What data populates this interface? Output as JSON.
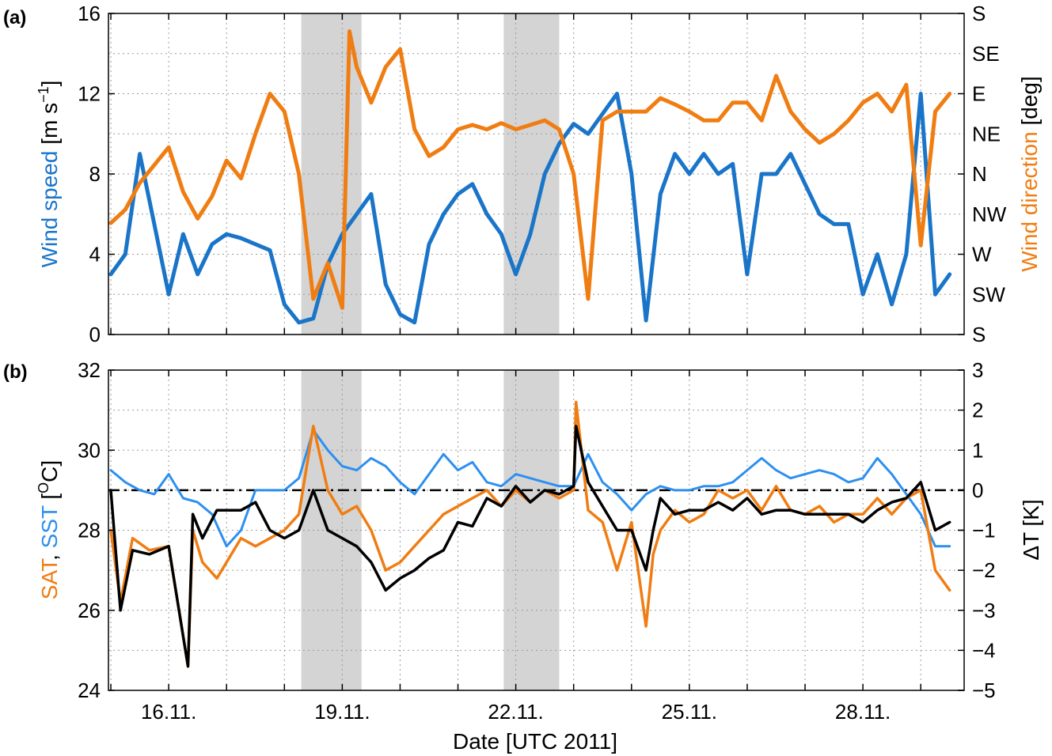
{
  "figure": {
    "xlabel": "Date [UTC 2011]",
    "x_tick_labels": [
      "16.11.",
      "19.11.",
      "22.11.",
      "25.11.",
      "28.11."
    ],
    "x_ticks": [
      "2011-11-16",
      "2011-11-19",
      "2011-11-22",
      "2011-11-25",
      "2011-11-28"
    ],
    "xlim": [
      "2011-11-14T23:00",
      "2011-11-29T18:00"
    ],
    "shaded_periods": [
      [
        "2011-11-18T07:00",
        "2011-11-19T08:00"
      ],
      [
        "2011-11-21T19:00",
        "2011-11-22T18:00"
      ]
    ],
    "colors": {
      "blue": "#1a75c9",
      "lightblue": "#2d8ff0",
      "orange": "#f07d12",
      "black": "#000000",
      "shade": "#d4d4d4",
      "grid": "#9a9a9a"
    }
  },
  "chart_data": [
    {
      "panel_label": "(a)",
      "type": "line",
      "ylabel_left": {
        "parts": [
          "Wind speed",
          " [m s",
          "−1",
          "]"
        ]
      },
      "ylabel_right": {
        "parts": [
          "Wind direction",
          " [deg]"
        ]
      },
      "ylim": [
        0,
        16
      ],
      "y_ticks": [
        0,
        4,
        8,
        12,
        16
      ],
      "right_tick_labels": [
        "S",
        "SW",
        "W",
        "NW",
        "N",
        "NE",
        "E",
        "SE",
        "S"
      ],
      "right_ylim_deg": [
        0,
        360
      ],
      "grid": true,
      "series": [
        {
          "axis": "left",
          "color_key": "blue",
          "x": [
            "2011-11-15T00:00",
            "2011-11-15T06:00",
            "2011-11-15T12:00",
            "2011-11-15T18:00",
            "2011-11-16T00:00",
            "2011-11-16T06:00",
            "2011-11-16T12:00",
            "2011-11-16T18:00",
            "2011-11-17T00:00",
            "2011-11-17T06:00",
            "2011-11-17T12:00",
            "2011-11-17T18:00",
            "2011-11-18T00:00",
            "2011-11-18T06:00",
            "2011-11-18T12:00",
            "2011-11-18T18:00",
            "2011-11-19T00:00",
            "2011-11-19T06:00",
            "2011-11-19T12:00",
            "2011-11-19T18:00",
            "2011-11-20T00:00",
            "2011-11-20T06:00",
            "2011-11-20T12:00",
            "2011-11-20T18:00",
            "2011-11-21T00:00",
            "2011-11-21T06:00",
            "2011-11-21T12:00",
            "2011-11-21T18:00",
            "2011-11-22T00:00",
            "2011-11-22T06:00",
            "2011-11-22T12:00",
            "2011-11-22T18:00",
            "2011-11-23T00:00",
            "2011-11-23T06:00",
            "2011-11-23T12:00",
            "2011-11-23T18:00",
            "2011-11-24T00:00",
            "2011-11-24T06:00",
            "2011-11-24T12:00",
            "2011-11-24T18:00",
            "2011-11-25T00:00",
            "2011-11-25T06:00",
            "2011-11-25T12:00",
            "2011-11-25T18:00",
            "2011-11-26T00:00",
            "2011-11-26T06:00",
            "2011-11-26T12:00",
            "2011-11-26T18:00",
            "2011-11-27T00:00",
            "2011-11-27T06:00",
            "2011-11-27T12:00",
            "2011-11-27T18:00",
            "2011-11-28T00:00",
            "2011-11-28T06:00",
            "2011-11-28T12:00",
            "2011-11-28T18:00",
            "2011-11-29T00:00",
            "2011-11-29T06:00",
            "2011-11-29T12:00"
          ],
          "y": [
            3.0,
            4.0,
            9.0,
            5.5,
            2.0,
            5.0,
            3.0,
            4.5,
            5.0,
            4.8,
            4.5,
            4.2,
            1.5,
            0.6,
            0.8,
            3.5,
            5.0,
            6.0,
            7.0,
            2.5,
            1.0,
            0.6,
            4.5,
            6.0,
            7.0,
            7.5,
            6.0,
            5.0,
            3.0,
            5.0,
            8.0,
            9.5,
            10.5,
            10.0,
            11.0,
            12.0,
            8.0,
            0.7,
            7.0,
            9.0,
            8.0,
            9.0,
            8.0,
            8.5,
            3.0,
            8.0,
            8.0,
            9.0,
            7.5,
            6.0,
            5.5,
            5.5,
            2.0,
            4.0,
            1.5,
            4.0,
            12.0,
            2.0,
            3.0
          ]
        },
        {
          "axis": "right",
          "color_key": "orange",
          "x": [
            "2011-11-15T00:00",
            "2011-11-15T06:00",
            "2011-11-15T12:00",
            "2011-11-15T18:00",
            "2011-11-16T00:00",
            "2011-11-16T06:00",
            "2011-11-16T12:00",
            "2011-11-16T18:00",
            "2011-11-17T00:00",
            "2011-11-17T06:00",
            "2011-11-17T12:00",
            "2011-11-17T18:00",
            "2011-11-18T00:00",
            "2011-11-18T06:00",
            "2011-11-18T12:00",
            "2011-11-18T18:00",
            "2011-11-19T00:00",
            "2011-11-19T03:00",
            "2011-11-19T06:00",
            "2011-11-19T12:00",
            "2011-11-19T18:00",
            "2011-11-20T00:00",
            "2011-11-20T06:00",
            "2011-11-20T12:00",
            "2011-11-20T18:00",
            "2011-11-21T00:00",
            "2011-11-21T06:00",
            "2011-11-21T12:00",
            "2011-11-21T18:00",
            "2011-11-22T00:00",
            "2011-11-22T06:00",
            "2011-11-22T12:00",
            "2011-11-22T18:00",
            "2011-11-23T00:00",
            "2011-11-23T06:00",
            "2011-11-23T12:00",
            "2011-11-23T18:00",
            "2011-11-24T00:00",
            "2011-11-24T06:00",
            "2011-11-24T12:00",
            "2011-11-24T18:00",
            "2011-11-25T00:00",
            "2011-11-25T06:00",
            "2011-11-25T12:00",
            "2011-11-25T18:00",
            "2011-11-26T00:00",
            "2011-11-26T06:00",
            "2011-11-26T12:00",
            "2011-11-26T18:00",
            "2011-11-27T00:00",
            "2011-11-27T06:00",
            "2011-11-27T12:00",
            "2011-11-27T18:00",
            "2011-11-28T00:00",
            "2011-11-28T06:00",
            "2011-11-28T12:00",
            "2011-11-28T18:00",
            "2011-11-29T00:00",
            "2011-11-29T06:00",
            "2011-11-29T12:00"
          ],
          "y": [
            125,
            140,
            170,
            190,
            210,
            160,
            130,
            155,
            195,
            175,
            225,
            270,
            250,
            180,
            40,
            80,
            30,
            340,
            300,
            260,
            300,
            320,
            230,
            200,
            210,
            230,
            235,
            230,
            237,
            230,
            235,
            240,
            230,
            180,
            40,
            240,
            250,
            250,
            250,
            265,
            258,
            250,
            240,
            240,
            260,
            260,
            240,
            290,
            250,
            230,
            215,
            225,
            240,
            260,
            270,
            250,
            280,
            100,
            250,
            270
          ]
        }
      ]
    },
    {
      "panel_label": "(b)",
      "type": "line",
      "ylabel_left": {
        "parts": [
          "SAT",
          ", ",
          "SST",
          " [",
          "O",
          "C]"
        ]
      },
      "ylabel_right": {
        "parts": [
          "ΔT [K]"
        ]
      },
      "ylim": [
        24,
        32
      ],
      "y_ticks": [
        24,
        26,
        28,
        30,
        32
      ],
      "right_ylim": [
        -5,
        3
      ],
      "right_ticks": [
        -5,
        -4,
        -3,
        -2,
        -1,
        0,
        1,
        2,
        3
      ],
      "right_tick_labels": [
        "−5",
        "−4",
        "−3",
        "−2",
        "−1",
        "0",
        "1",
        "2",
        "3"
      ],
      "reference_line": {
        "axis": "right",
        "value": 0,
        "style": "dash-dot"
      },
      "grid": true,
      "series": [
        {
          "axis": "left",
          "color_key": "lightblue",
          "x": [
            "2011-11-15T00:00",
            "2011-11-15T06:00",
            "2011-11-15T12:00",
            "2011-11-15T18:00",
            "2011-11-16T00:00",
            "2011-11-16T06:00",
            "2011-11-16T12:00",
            "2011-11-16T18:00",
            "2011-11-17T00:00",
            "2011-11-17T06:00",
            "2011-11-17T12:00",
            "2011-11-17T18:00",
            "2011-11-18T00:00",
            "2011-11-18T06:00",
            "2011-11-18T12:00",
            "2011-11-18T18:00",
            "2011-11-19T00:00",
            "2011-11-19T06:00",
            "2011-11-19T12:00",
            "2011-11-19T18:00",
            "2011-11-20T00:00",
            "2011-11-20T06:00",
            "2011-11-20T12:00",
            "2011-11-20T18:00",
            "2011-11-21T00:00",
            "2011-11-21T06:00",
            "2011-11-21T12:00",
            "2011-11-21T18:00",
            "2011-11-22T00:00",
            "2011-11-22T06:00",
            "2011-11-22T12:00",
            "2011-11-22T18:00",
            "2011-11-23T00:00",
            "2011-11-23T06:00",
            "2011-11-23T12:00",
            "2011-11-23T18:00",
            "2011-11-24T00:00",
            "2011-11-24T06:00",
            "2011-11-24T12:00",
            "2011-11-24T18:00",
            "2011-11-25T00:00",
            "2011-11-25T06:00",
            "2011-11-25T12:00",
            "2011-11-25T18:00",
            "2011-11-26T00:00",
            "2011-11-26T06:00",
            "2011-11-26T12:00",
            "2011-11-26T18:00",
            "2011-11-27T00:00",
            "2011-11-27T06:00",
            "2011-11-27T12:00",
            "2011-11-27T18:00",
            "2011-11-28T00:00",
            "2011-11-28T06:00",
            "2011-11-28T12:00",
            "2011-11-28T18:00",
            "2011-11-29T00:00",
            "2011-11-29T06:00",
            "2011-11-29T12:00"
          ],
          "y": [
            29.5,
            29.2,
            29.0,
            28.9,
            29.4,
            28.8,
            28.7,
            28.4,
            27.6,
            28.0,
            29.0,
            29.0,
            29.0,
            29.3,
            30.5,
            30.0,
            29.6,
            29.5,
            29.8,
            29.6,
            29.2,
            28.9,
            29.4,
            29.9,
            29.5,
            29.7,
            29.2,
            29.1,
            29.4,
            29.3,
            29.2,
            29.1,
            29.1,
            29.9,
            29.2,
            28.9,
            28.5,
            28.9,
            29.1,
            29.0,
            29.0,
            29.1,
            29.1,
            29.2,
            29.5,
            29.8,
            29.5,
            29.3,
            29.4,
            29.5,
            29.4,
            29.2,
            29.3,
            29.8,
            29.4,
            28.9,
            28.4,
            27.6,
            27.6
          ]
        },
        {
          "axis": "left",
          "color_key": "orange",
          "x": [
            "2011-11-15T00:00",
            "2011-11-15T04:00",
            "2011-11-15T09:00",
            "2011-11-15T16:00",
            "2011-11-16T00:00",
            "2011-11-16T08:00",
            "2011-11-16T10:00",
            "2011-11-16T14:00",
            "2011-11-16T20:00",
            "2011-11-17T06:00",
            "2011-11-17T12:00",
            "2011-11-17T18:00",
            "2011-11-18T00:00",
            "2011-11-18T06:00",
            "2011-11-18T12:00",
            "2011-11-18T18:00",
            "2011-11-19T00:00",
            "2011-11-19T06:00",
            "2011-11-19T12:00",
            "2011-11-19T18:00",
            "2011-11-20T00:00",
            "2011-11-20T06:00",
            "2011-11-20T12:00",
            "2011-11-20T18:00",
            "2011-11-21T00:00",
            "2011-11-21T06:00",
            "2011-11-21T12:00",
            "2011-11-21T18:00",
            "2011-11-22T00:00",
            "2011-11-22T06:00",
            "2011-11-22T12:00",
            "2011-11-22T18:00",
            "2011-11-23T00:00",
            "2011-11-23T01:00",
            "2011-11-23T06:00",
            "2011-11-23T12:00",
            "2011-11-23T18:00",
            "2011-11-24T00:00",
            "2011-11-24T06:00",
            "2011-11-24T09:00",
            "2011-11-24T12:00",
            "2011-11-24T18:00",
            "2011-11-25T00:00",
            "2011-11-25T06:00",
            "2011-11-25T12:00",
            "2011-11-25T18:00",
            "2011-11-26T00:00",
            "2011-11-26T06:00",
            "2011-11-26T12:00",
            "2011-11-26T18:00",
            "2011-11-27T00:00",
            "2011-11-27T06:00",
            "2011-11-27T12:00",
            "2011-11-27T18:00",
            "2011-11-28T00:00",
            "2011-11-28T06:00",
            "2011-11-28T12:00",
            "2011-11-28T18:00",
            "2011-11-29T00:00",
            "2011-11-29T06:00",
            "2011-11-29T12:00"
          ],
          "y": [
            28.0,
            26.2,
            27.8,
            27.5,
            27.6,
            24.6,
            28.0,
            27.2,
            26.8,
            27.8,
            27.6,
            27.8,
            28.0,
            28.4,
            30.6,
            29.0,
            28.4,
            28.6,
            28.0,
            27.0,
            27.2,
            27.6,
            28.0,
            28.4,
            28.6,
            28.8,
            29.0,
            28.6,
            29.0,
            28.7,
            29.0,
            28.8,
            29.0,
            31.2,
            28.5,
            28.2,
            27.0,
            28.2,
            25.6,
            27.4,
            28.0,
            28.5,
            28.2,
            28.4,
            29.0,
            28.8,
            29.0,
            28.5,
            29.1,
            28.5,
            28.4,
            28.6,
            28.2,
            28.4,
            28.4,
            28.8,
            28.4,
            28.8,
            29.0,
            27.0,
            26.5
          ]
        },
        {
          "axis": "right",
          "color_key": "black",
          "x": [
            "2011-11-15T00:00",
            "2011-11-15T04:00",
            "2011-11-15T09:00",
            "2011-11-15T16:00",
            "2011-11-16T00:00",
            "2011-11-16T08:00",
            "2011-11-16T10:00",
            "2011-11-16T14:00",
            "2011-11-16T20:00",
            "2011-11-17T06:00",
            "2011-11-17T12:00",
            "2011-11-17T18:00",
            "2011-11-18T00:00",
            "2011-11-18T06:00",
            "2011-11-18T12:00",
            "2011-11-18T18:00",
            "2011-11-19T00:00",
            "2011-11-19T06:00",
            "2011-11-19T12:00",
            "2011-11-19T18:00",
            "2011-11-20T00:00",
            "2011-11-20T06:00",
            "2011-11-20T12:00",
            "2011-11-20T18:00",
            "2011-11-21T00:00",
            "2011-11-21T06:00",
            "2011-11-21T12:00",
            "2011-11-21T18:00",
            "2011-11-22T00:00",
            "2011-11-22T06:00",
            "2011-11-22T12:00",
            "2011-11-22T18:00",
            "2011-11-23T00:00",
            "2011-11-23T01:00",
            "2011-11-23T06:00",
            "2011-11-23T12:00",
            "2011-11-23T18:00",
            "2011-11-24T00:00",
            "2011-11-24T06:00",
            "2011-11-24T09:00",
            "2011-11-24T12:00",
            "2011-11-24T18:00",
            "2011-11-25T00:00",
            "2011-11-25T06:00",
            "2011-11-25T12:00",
            "2011-11-25T18:00",
            "2011-11-26T00:00",
            "2011-11-26T06:00",
            "2011-11-26T12:00",
            "2011-11-26T18:00",
            "2011-11-27T00:00",
            "2011-11-27T06:00",
            "2011-11-27T12:00",
            "2011-11-27T18:00",
            "2011-11-28T00:00",
            "2011-11-28T06:00",
            "2011-11-28T12:00",
            "2011-11-28T18:00",
            "2011-11-29T00:00",
            "2011-11-29T06:00",
            "2011-11-29T12:00"
          ],
          "y": [
            0.0,
            -3.0,
            -1.5,
            -1.6,
            -1.4,
            -4.4,
            -0.6,
            -1.2,
            -0.5,
            -0.5,
            -0.3,
            -1.0,
            -1.2,
            -1.0,
            0.0,
            -1.0,
            -1.2,
            -1.4,
            -1.8,
            -2.5,
            -2.2,
            -2.0,
            -1.7,
            -1.5,
            -0.8,
            -0.9,
            -0.2,
            -0.4,
            0.1,
            -0.3,
            0.0,
            -0.1,
            0.1,
            1.6,
            0.2,
            -0.4,
            -1.0,
            -1.0,
            -2.0,
            -1.0,
            -0.2,
            -0.6,
            -0.5,
            -0.5,
            -0.3,
            -0.5,
            -0.2,
            -0.6,
            -0.5,
            -0.5,
            -0.6,
            -0.6,
            -0.6,
            -0.6,
            -0.8,
            -0.5,
            -0.3,
            -0.2,
            0.2,
            -1.0,
            -0.8
          ]
        }
      ]
    }
  ]
}
